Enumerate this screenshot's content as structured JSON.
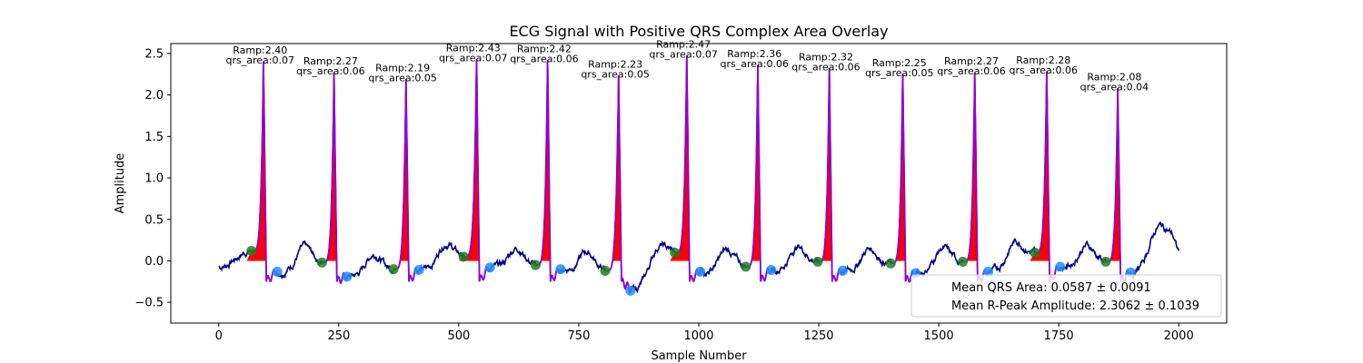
{
  "chart_data": {
    "type": "line",
    "title": "ECG Signal with Positive QRS Complex Area Overlay",
    "xlabel": "Sample Number",
    "ylabel": "Amplitude",
    "xlim": [
      -100,
      2100
    ],
    "ylim": [
      -0.75,
      2.62
    ],
    "x_ticks": [
      0,
      250,
      500,
      750,
      1000,
      1250,
      1500,
      1750,
      2000
    ],
    "x_tick_labels": [
      "0",
      "250",
      "500",
      "750",
      "1000",
      "1250",
      "1500",
      "1750",
      "2000"
    ],
    "y_ticks": [
      -0.5,
      0.0,
      0.5,
      1.0,
      1.5,
      2.0,
      2.5
    ],
    "y_tick_labels": [
      "−0.5",
      "0.0",
      "0.5",
      "1.0",
      "1.5",
      "2.0",
      "2.5"
    ],
    "grid": false,
    "colors": {
      "signal": "#00008b",
      "qrs_segment": "#9400d3",
      "qrs_fill": "#ff0000",
      "onset_marker": "#1e7f1e",
      "offset_marker": "#1e90ff"
    },
    "beats": [
      {
        "r_peak": 93,
        "ramp": 2.4,
        "qrs_area": 0.07,
        "onset": [
          68,
          0.12
        ],
        "offset": [
          122,
          -0.13
        ],
        "annotation": [
          "Ramp:2.40",
          "qrs_area:0.07"
        ]
      },
      {
        "r_peak": 240,
        "ramp": 2.27,
        "qrs_area": 0.06,
        "onset": [
          215,
          -0.02
        ],
        "offset": [
          267,
          -0.19
        ],
        "annotation": [
          "Ramp:2.27",
          "qrs_area:0.06"
        ]
      },
      {
        "r_peak": 390,
        "ramp": 2.19,
        "qrs_area": 0.05,
        "onset": [
          364,
          -0.1
        ],
        "offset": [
          417,
          -0.11
        ],
        "annotation": [
          "Ramp:2.19",
          "qrs_area:0.05"
        ]
      },
      {
        "r_peak": 537,
        "ramp": 2.43,
        "qrs_area": 0.07,
        "onset": [
          510,
          0.05
        ],
        "offset": [
          565,
          -0.08
        ],
        "annotation": [
          "Ramp:2.43",
          "qrs_area:0.07"
        ]
      },
      {
        "r_peak": 685,
        "ramp": 2.42,
        "qrs_area": 0.06,
        "onset": [
          660,
          -0.05
        ],
        "offset": [
          712,
          -0.1
        ],
        "annotation": [
          "Ramp:2.42",
          "qrs_area:0.06"
        ]
      },
      {
        "r_peak": 833,
        "ramp": 2.23,
        "qrs_area": 0.05,
        "onset": [
          805,
          -0.12
        ],
        "offset": [
          858,
          -0.36
        ],
        "annotation": [
          "Ramp:2.23",
          "qrs_area:0.05"
        ]
      },
      {
        "r_peak": 975,
        "ramp": 2.47,
        "qrs_area": 0.07,
        "onset": [
          950,
          0.1
        ],
        "offset": [
          1003,
          -0.13
        ],
        "annotation": [
          "Ramp:2.47",
          "qrs_area:0.07"
        ]
      },
      {
        "r_peak": 1123,
        "ramp": 2.36,
        "qrs_area": 0.06,
        "onset": [
          1098,
          -0.07
        ],
        "offset": [
          1151,
          -0.11
        ],
        "annotation": [
          "Ramp:2.36",
          "qrs_area:0.06"
        ]
      },
      {
        "r_peak": 1272,
        "ramp": 2.32,
        "qrs_area": 0.06,
        "onset": [
          1248,
          -0.01
        ],
        "offset": [
          1300,
          -0.12
        ],
        "annotation": [
          "Ramp:2.32",
          "qrs_area:0.06"
        ]
      },
      {
        "r_peak": 1425,
        "ramp": 2.25,
        "qrs_area": 0.05,
        "onset": [
          1400,
          -0.03
        ],
        "offset": [
          1452,
          -0.15
        ],
        "annotation": [
          "Ramp:2.25",
          "qrs_area:0.05"
        ]
      },
      {
        "r_peak": 1575,
        "ramp": 2.27,
        "qrs_area": 0.06,
        "onset": [
          1550,
          -0.01
        ],
        "offset": [
          1603,
          -0.13
        ],
        "annotation": [
          "Ramp:2.27",
          "qrs_area:0.06"
        ]
      },
      {
        "r_peak": 1725,
        "ramp": 2.28,
        "qrs_area": 0.06,
        "onset": [
          1700,
          0.1
        ],
        "offset": [
          1753,
          -0.07
        ],
        "annotation": [
          "Ramp:2.28",
          "qrs_area:0.06"
        ]
      },
      {
        "r_peak": 1873,
        "ramp": 2.08,
        "qrs_area": 0.04,
        "onset": [
          1848,
          -0.01
        ],
        "offset": [
          1900,
          -0.14
        ],
        "annotation": [
          "Ramp:2.08",
          "qrs_area:0.04"
        ]
      }
    ],
    "legend": {
      "placement": "lower-right",
      "entries": [
        "Mean QRS Area: 0.0587 ± 0.0091",
        "Mean R-Peak Amplitude: 2.3062 ± 0.1039"
      ]
    }
  }
}
